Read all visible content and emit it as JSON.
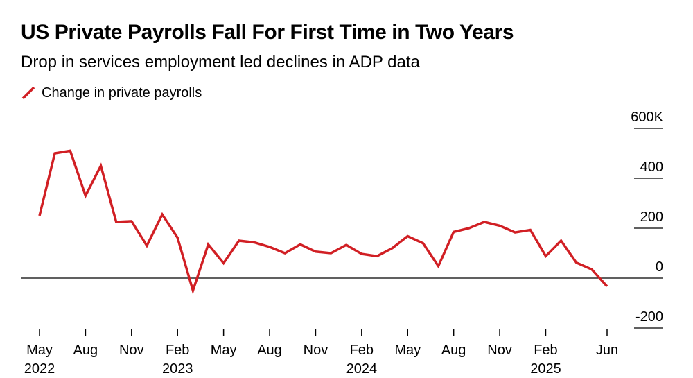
{
  "title": "US Private Payrolls Fall For First Time in Two Years",
  "subtitle": "Drop in services employment led declines in ADP data",
  "colors": {
    "series": "#d11f24",
    "axis": "#000000"
  },
  "chart_data": {
    "type": "line",
    "title": "US Private Payrolls Fall For First Time in Two Years",
    "subtitle": "Drop in services employment led declines in ADP data",
    "xlabel": "",
    "ylabel": "",
    "ylim": [
      -200,
      600
    ],
    "grid": false,
    "legend_position": "top-left",
    "y_ticks": [
      {
        "value": 600,
        "label": "600K"
      },
      {
        "value": 400,
        "label": "400"
      },
      {
        "value": 200,
        "label": "200"
      },
      {
        "value": 0,
        "label": "0"
      },
      {
        "value": -200,
        "label": "-200"
      }
    ],
    "x_ticks": [
      {
        "month": "2022-05",
        "label": "May",
        "year": "2022"
      },
      {
        "month": "2022-08",
        "label": "Aug",
        "year": ""
      },
      {
        "month": "2022-11",
        "label": "Nov",
        "year": ""
      },
      {
        "month": "2023-02",
        "label": "Feb",
        "year": "2023"
      },
      {
        "month": "2023-05",
        "label": "May",
        "year": ""
      },
      {
        "month": "2023-08",
        "label": "Aug",
        "year": ""
      },
      {
        "month": "2023-11",
        "label": "Nov",
        "year": ""
      },
      {
        "month": "2024-02",
        "label": "Feb",
        "year": "2024"
      },
      {
        "month": "2024-05",
        "label": "May",
        "year": ""
      },
      {
        "month": "2024-08",
        "label": "Aug",
        "year": ""
      },
      {
        "month": "2024-11",
        "label": "Nov",
        "year": ""
      },
      {
        "month": "2025-02",
        "label": "Feb",
        "year": "2025"
      },
      {
        "month": "2025-06",
        "label": "Jun",
        "year": ""
      }
    ],
    "series": [
      {
        "name": "Change in private payrolls",
        "color": "#d11f24",
        "points": [
          {
            "x": "2022-05",
            "y": 250
          },
          {
            "x": "2022-06",
            "y": 500
          },
          {
            "x": "2022-07",
            "y": 510
          },
          {
            "x": "2022-08",
            "y": 330
          },
          {
            "x": "2022-09",
            "y": 450
          },
          {
            "x": "2022-10",
            "y": 225
          },
          {
            "x": "2022-11",
            "y": 228
          },
          {
            "x": "2022-12",
            "y": 130
          },
          {
            "x": "2023-01",
            "y": 255
          },
          {
            "x": "2023-02",
            "y": 162
          },
          {
            "x": "2023-03",
            "y": -50
          },
          {
            "x": "2023-04",
            "y": 135
          },
          {
            "x": "2023-05",
            "y": 60
          },
          {
            "x": "2023-06",
            "y": 150
          },
          {
            "x": "2023-07",
            "y": 143
          },
          {
            "x": "2023-08",
            "y": 125
          },
          {
            "x": "2023-09",
            "y": 100
          },
          {
            "x": "2023-10",
            "y": 135
          },
          {
            "x": "2023-11",
            "y": 106
          },
          {
            "x": "2023-12",
            "y": 100
          },
          {
            "x": "2024-01",
            "y": 133
          },
          {
            "x": "2024-02",
            "y": 97
          },
          {
            "x": "2024-03",
            "y": 88
          },
          {
            "x": "2024-04",
            "y": 120
          },
          {
            "x": "2024-05",
            "y": 168
          },
          {
            "x": "2024-06",
            "y": 140
          },
          {
            "x": "2024-07",
            "y": 48
          },
          {
            "x": "2024-08",
            "y": 185
          },
          {
            "x": "2024-09",
            "y": 200
          },
          {
            "x": "2024-10",
            "y": 225
          },
          {
            "x": "2024-11",
            "y": 210
          },
          {
            "x": "2024-12",
            "y": 183
          },
          {
            "x": "2025-01",
            "y": 193
          },
          {
            "x": "2025-02",
            "y": 88
          },
          {
            "x": "2025-03",
            "y": 150
          },
          {
            "x": "2025-04",
            "y": 62
          },
          {
            "x": "2025-05",
            "y": 35
          },
          {
            "x": "2025-06",
            "y": -33
          }
        ]
      }
    ]
  }
}
